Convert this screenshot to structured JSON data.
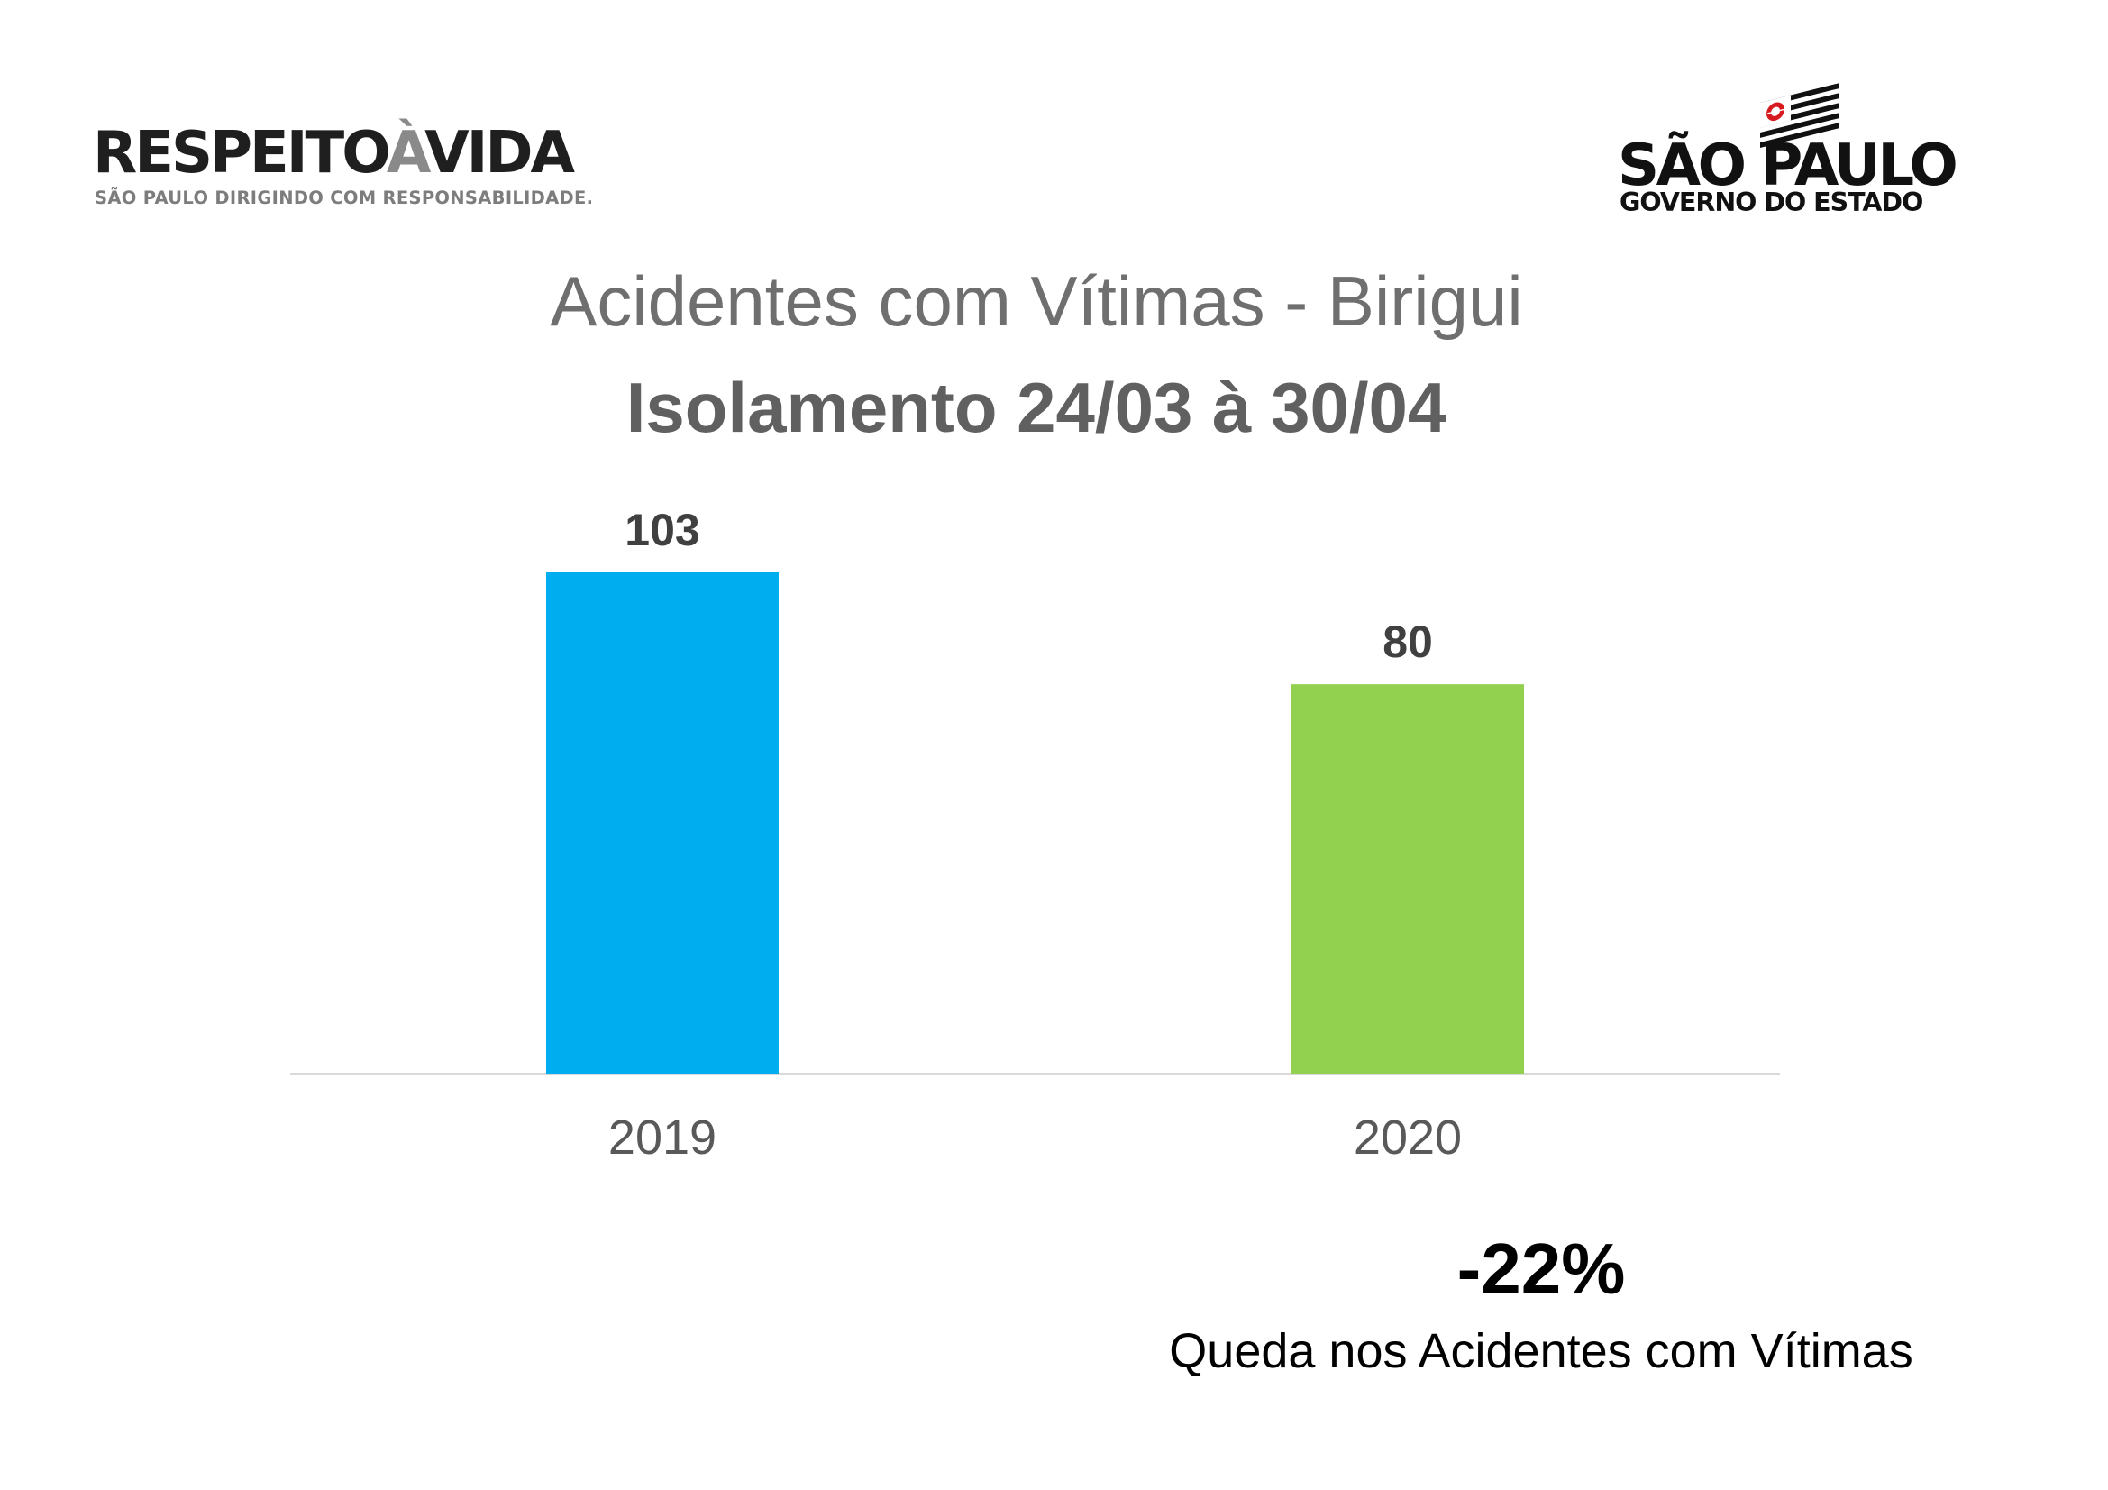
{
  "logos": {
    "left": {
      "brand_part1": "RESPEITO",
      "brand_part2": "À",
      "brand_part3": "VIDA",
      "tagline": "SÃO PAULO DIRIGINDO COM RESPONSABILIDADE."
    },
    "right": {
      "name": "SÃO PAULO",
      "subtitle": "GOVERNO DO ESTADO"
    }
  },
  "chart_data": {
    "type": "bar",
    "title": "Acidentes com Vítimas - Birigui",
    "subtitle": "Isolamento 24/03 à 30/04",
    "categories": [
      "2019",
      "2020"
    ],
    "values": [
      103,
      80
    ],
    "bar_colors": [
      "#00AEEF",
      "#92D050"
    ],
    "xlabel": "",
    "ylabel": "",
    "ylim": [
      0,
      103
    ],
    "grid": false,
    "legend": "none",
    "data_labels": true
  },
  "callout": {
    "percent": "-22%",
    "description": "Queda nos Acidentes com Vítimas"
  },
  "colors": {
    "title_text": "#6F6F6F",
    "axis_line": "#D9D9D9"
  }
}
